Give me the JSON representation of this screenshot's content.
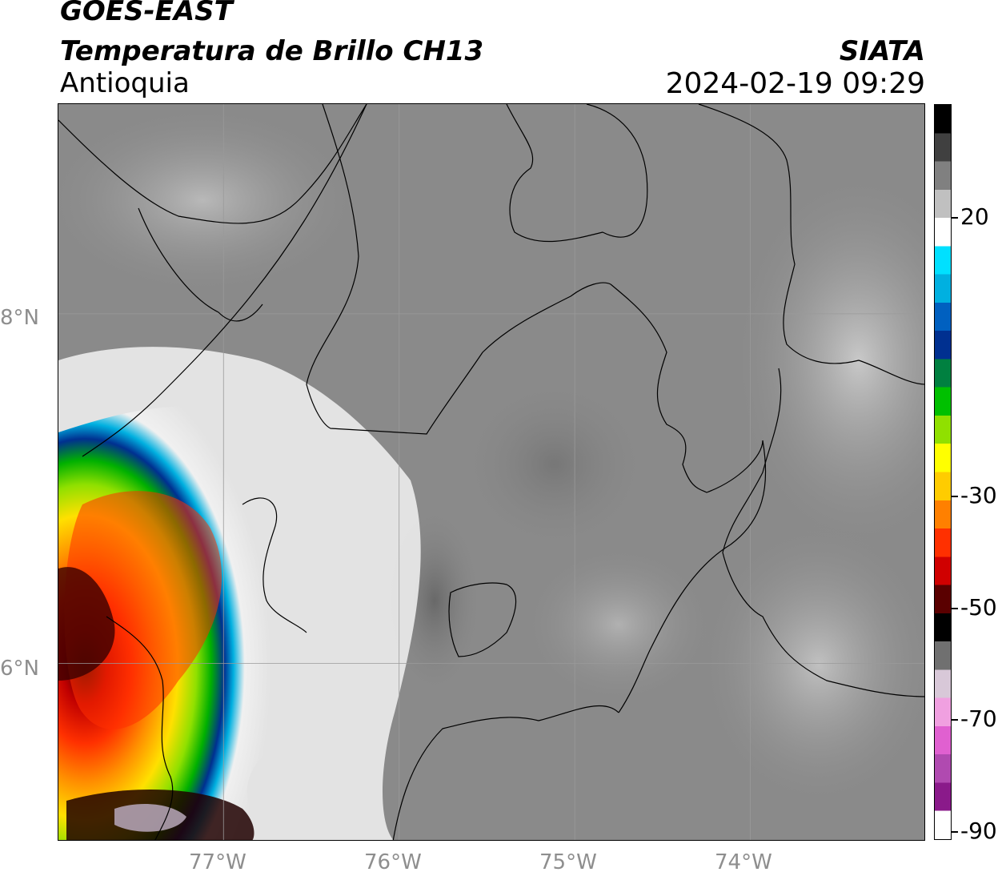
{
  "header": {
    "satellite": "GOES-EAST",
    "product": "Temperatura de Brillo CH13",
    "region": "Antioquia",
    "source": "SIATA",
    "datetime": "2024-02-19 09:29"
  },
  "map": {
    "lat_labels": [
      "8°N",
      "6°N"
    ],
    "lon_labels": [
      "77°W",
      "76°W",
      "75°W",
      "74°W"
    ],
    "lat_values": [
      8,
      6
    ],
    "lon_values": [
      -77,
      -76,
      -75,
      -74
    ],
    "background_color": "#8a8a8a",
    "grid_color": "#9a9a9a",
    "border_color": "#000000"
  },
  "colorbar": {
    "tick_labels": [
      "20",
      "-30",
      "-50",
      "-70",
      "-90"
    ],
    "tick_values": [
      20,
      -30,
      -50,
      -70,
      -90
    ],
    "range": [
      -90,
      40
    ],
    "colors": [
      "#ffffff",
      "#8a1a8a",
      "#b04ab0",
      "#e060d0",
      "#f0a0e0",
      "#d8c8d8",
      "#707070",
      "#000000",
      "#5a0000",
      "#d00000",
      "#ff3000",
      "#ff8000",
      "#ffcc00",
      "#ffff00",
      "#90e000",
      "#00c000",
      "#008040",
      "#003090",
      "#0060c0",
      "#00b0e0",
      "#00e0ff",
      "#ffffff",
      "#c0c0c0",
      "#808080",
      "#404040",
      "#000000"
    ]
  }
}
